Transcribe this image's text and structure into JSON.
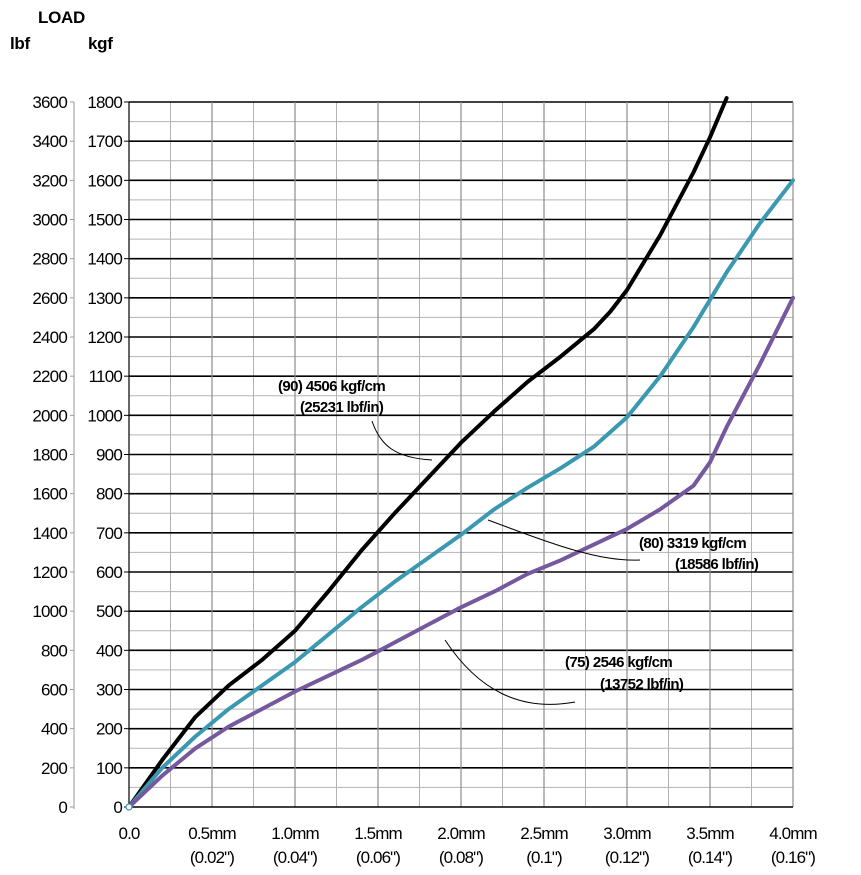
{
  "headers": {
    "title": "LOAD",
    "left_unit": "lbf",
    "right_unit": "kgf"
  },
  "chart_data": {
    "type": "line",
    "y_left_ticks": [
      "0",
      "200",
      "400",
      "600",
      "800",
      "1000",
      "1200",
      "1400",
      "1600",
      "1800",
      "2000",
      "2200",
      "2400",
      "2600",
      "2800",
      "3000",
      "3200",
      "3400",
      "3600"
    ],
    "y_right_ticks": [
      "0",
      "100",
      "200",
      "300",
      "400",
      "500",
      "600",
      "700",
      "800",
      "900",
      "1000",
      "1100",
      "1200",
      "1300",
      "1400",
      "1500",
      "1600",
      "1700",
      "1800"
    ],
    "x_ticks": [
      {
        "mm": "0.0",
        "in": ""
      },
      {
        "mm": "0.5mm",
        "in": "(0.02\")"
      },
      {
        "mm": "1.0mm",
        "in": "(0.04\")"
      },
      {
        "mm": "1.5mm",
        "in": "(0.06\")"
      },
      {
        "mm": "2.0mm",
        "in": "(0.08\")"
      },
      {
        "mm": "2.5mm",
        "in": "(0.1\")"
      },
      {
        "mm": "3.0mm",
        "in": "(0.12\")"
      },
      {
        "mm": "3.5mm",
        "in": "(0.14\")"
      },
      {
        "mm": "4.0mm",
        "in": "(0.16\")"
      }
    ],
    "xlim": [
      0,
      4.0
    ],
    "ylim_kgf": [
      0,
      1800
    ],
    "ylim_lbf": [
      0,
      3600
    ],
    "grid": true,
    "series": [
      {
        "name": "(90) 4506 kgf/cm",
        "name_line2": "(25231 lbf/in)",
        "color": "#000000",
        "x": [
          0,
          0.2,
          0.4,
          0.6,
          0.8,
          1.0,
          1.2,
          1.4,
          1.6,
          1.8,
          2.0,
          2.2,
          2.4,
          2.6,
          2.8,
          2.9,
          3.0,
          3.2,
          3.4,
          3.5,
          3.6
        ],
        "kgf": [
          0,
          120,
          230,
          310,
          375,
          450,
          550,
          655,
          750,
          840,
          930,
          1010,
          1085,
          1150,
          1220,
          1265,
          1320,
          1460,
          1620,
          1710,
          1810
        ]
      },
      {
        "name": "(80) 3319 kgf/cm",
        "name_line2": "(18586 lbf/in)",
        "color": "#3a99b1",
        "x": [
          0,
          0.2,
          0.4,
          0.6,
          0.8,
          1.0,
          1.2,
          1.4,
          1.6,
          1.8,
          2.0,
          2.2,
          2.4,
          2.6,
          2.8,
          3.0,
          3.2,
          3.4,
          3.6,
          3.8,
          4.0
        ],
        "kgf": [
          0,
          100,
          180,
          250,
          310,
          370,
          440,
          510,
          575,
          635,
          695,
          760,
          815,
          865,
          920,
          995,
          1100,
          1225,
          1365,
          1490,
          1600
        ]
      },
      {
        "name": "(75) 2546 kgf/cm",
        "name_line2": "(13752 lbf/in)",
        "color": "#75589d",
        "x": [
          0,
          0.2,
          0.4,
          0.6,
          0.8,
          1.0,
          1.2,
          1.4,
          1.6,
          1.8,
          2.0,
          2.2,
          2.4,
          2.6,
          2.8,
          3.0,
          3.2,
          3.4,
          3.5,
          3.6,
          3.8,
          4.0
        ],
        "kgf": [
          0,
          80,
          150,
          205,
          250,
          295,
          335,
          375,
          420,
          465,
          510,
          550,
          595,
          630,
          670,
          710,
          760,
          820,
          880,
          970,
          1130,
          1300
        ]
      }
    ]
  }
}
